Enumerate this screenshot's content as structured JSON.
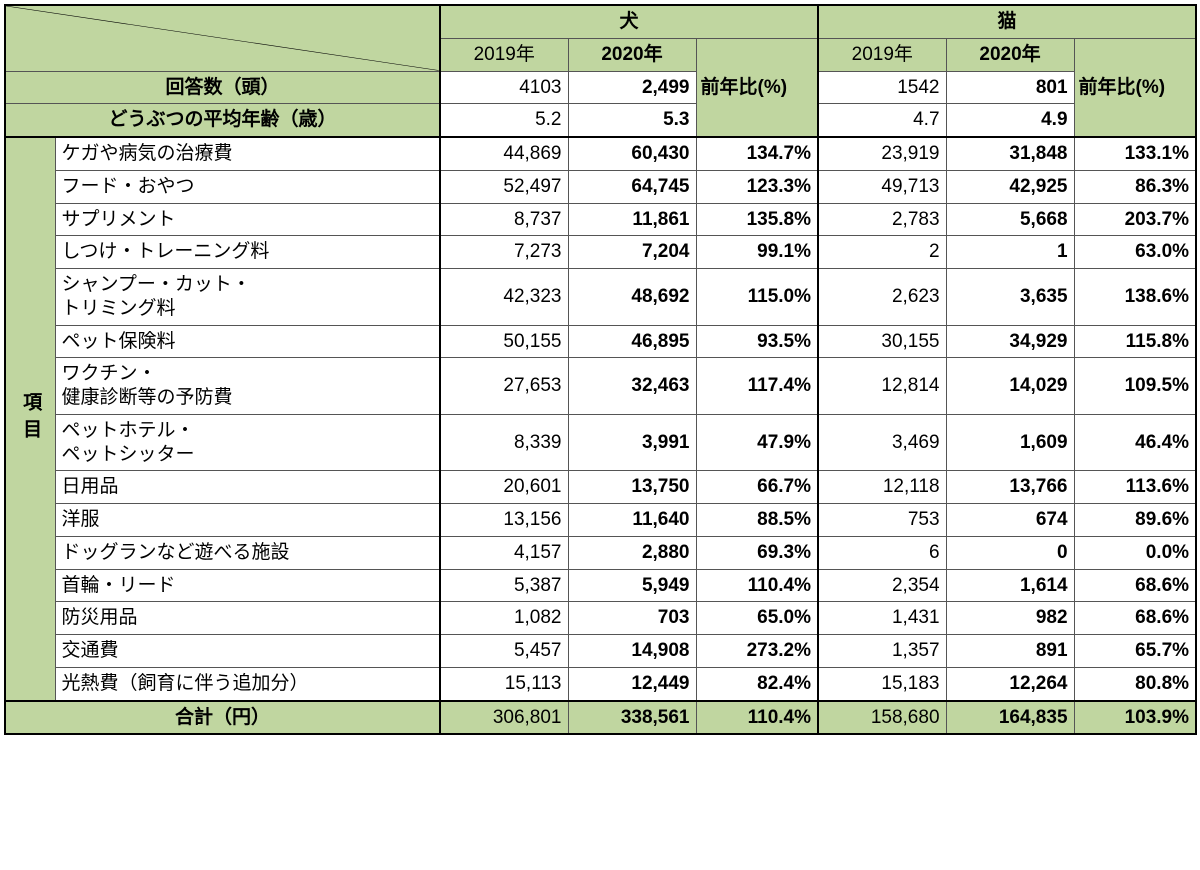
{
  "colors": {
    "header_bg": "#c0d6a0",
    "cell_bg": "#ffffff",
    "border": "#000000",
    "border_thin": "#555555"
  },
  "columns": {
    "side_label_w": 50,
    "item_label_w": 385,
    "dog_2019_w": 130,
    "dog_2020_w": 130,
    "dog_ratio_w": 120,
    "cat_2019_w": 130,
    "cat_2020_w": 130,
    "cat_ratio_w": 120
  },
  "headers": {
    "animals": [
      "犬",
      "猫"
    ],
    "years": [
      "2019年",
      "2020年"
    ],
    "ratio": "前年比(%)",
    "side_label": "項目"
  },
  "meta_rows": [
    {
      "label": "回答数（頭）",
      "dog": [
        "4103",
        "2,499"
      ],
      "cat": [
        "1542",
        "801"
      ]
    },
    {
      "label": "どうぶつの平均年齢（歳）",
      "dog": [
        "5.2",
        "5.3"
      ],
      "cat": [
        "4.7",
        "4.9"
      ]
    }
  ],
  "items": [
    {
      "label": "ケガや病気の治療費",
      "dog": [
        "44,869",
        "60,430",
        "134.7%"
      ],
      "cat": [
        "23,919",
        "31,848",
        "133.1%"
      ]
    },
    {
      "label": "フード・おやつ",
      "dog": [
        "52,497",
        "64,745",
        "123.3%"
      ],
      "cat": [
        "49,713",
        "42,925",
        "86.3%"
      ]
    },
    {
      "label": "サプリメント",
      "dog": [
        "8,737",
        "11,861",
        "135.8%"
      ],
      "cat": [
        "2,783",
        "5,668",
        "203.7%"
      ]
    },
    {
      "label": "しつけ・トレーニング料",
      "dog": [
        "7,273",
        "7,204",
        "99.1%"
      ],
      "cat": [
        "2",
        "1",
        "63.0%"
      ]
    },
    {
      "label": "シャンプー・カット・\nトリミング料",
      "dog": [
        "42,323",
        "48,692",
        "115.0%"
      ],
      "cat": [
        "2,623",
        "3,635",
        "138.6%"
      ]
    },
    {
      "label": "ペット保険料",
      "dog": [
        "50,155",
        "46,895",
        "93.5%"
      ],
      "cat": [
        "30,155",
        "34,929",
        "115.8%"
      ]
    },
    {
      "label": "ワクチン・\n健康診断等の予防費",
      "dog": [
        "27,653",
        "32,463",
        "117.4%"
      ],
      "cat": [
        "12,814",
        "14,029",
        "109.5%"
      ]
    },
    {
      "label": "ペットホテル・\nペットシッター",
      "dog": [
        "8,339",
        "3,991",
        "47.9%"
      ],
      "cat": [
        "3,469",
        "1,609",
        "46.4%"
      ]
    },
    {
      "label": "日用品",
      "dog": [
        "20,601",
        "13,750",
        "66.7%"
      ],
      "cat": [
        "12,118",
        "13,766",
        "113.6%"
      ]
    },
    {
      "label": "洋服",
      "dog": [
        "13,156",
        "11,640",
        "88.5%"
      ],
      "cat": [
        "753",
        "674",
        "89.6%"
      ]
    },
    {
      "label": "ドッグランなど遊べる施設",
      "dog": [
        "4,157",
        "2,880",
        "69.3%"
      ],
      "cat": [
        "6",
        "0",
        "0.0%"
      ]
    },
    {
      "label": "首輪・リード",
      "dog": [
        "5,387",
        "5,949",
        "110.4%"
      ],
      "cat": [
        "2,354",
        "1,614",
        "68.6%"
      ]
    },
    {
      "label": "防災用品",
      "dog": [
        "1,082",
        "703",
        "65.0%"
      ],
      "cat": [
        "1,431",
        "982",
        "68.6%"
      ]
    },
    {
      "label": "交通費",
      "dog": [
        "5,457",
        "14,908",
        "273.2%"
      ],
      "cat": [
        "1,357",
        "891",
        "65.7%"
      ]
    },
    {
      "label": "光熱費（飼育に伴う追加分）",
      "dog": [
        "15,113",
        "12,449",
        "82.4%"
      ],
      "cat": [
        "15,183",
        "12,264",
        "80.8%"
      ]
    }
  ],
  "total": {
    "label": "合計（円）",
    "dog": [
      "306,801",
      "338,561",
      "110.4%"
    ],
    "cat": [
      "158,680",
      "164,835",
      "103.9%"
    ]
  }
}
